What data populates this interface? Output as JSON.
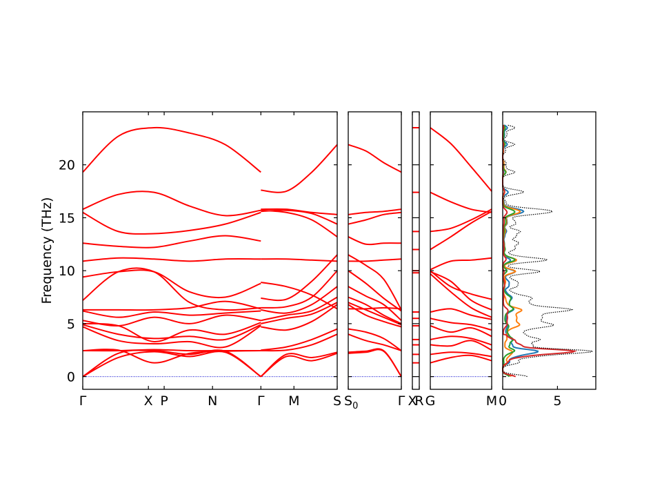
{
  "chart_data": {
    "type": "line",
    "ylabel": "Frequency (THz)",
    "ylim": [
      -1.2,
      25
    ],
    "yticks": [
      0,
      5,
      10,
      15,
      20
    ],
    "series_color": "#ff0000",
    "zero_line_color": "#0000cc",
    "band_panels": [
      {
        "ticks": [
          [
            "Γ",
            0
          ],
          [
            "X",
            0.258
          ],
          [
            "P",
            0.32
          ],
          [
            "N",
            0.51
          ],
          [
            "Γ",
            0.7
          ],
          [
            "M",
            0.83
          ],
          [
            "S",
            1.0
          ]
        ],
        "subtick": "",
        "segments": [
          {
            "x0": 0,
            "x1": 0.7,
            "bands": [
              [
                0,
                1.8,
                2.35,
                1.9,
                2.3,
                0
              ],
              [
                0,
                2.2,
                2.45,
                2.1,
                2.4,
                0
              ],
              [
                2.45,
                2.5,
                1.3,
                2.2,
                2.4,
                2.45
              ],
              [
                2.45,
                2.45,
                2.55,
                2.45,
                2.45,
                2.45
              ],
              [
                4.7,
                3.4,
                3.1,
                3.3,
                2.8,
                4.8
              ],
              [
                4.9,
                4.0,
                3.6,
                3.8,
                3.5,
                4.9
              ],
              [
                5.0,
                4.8,
                3.3,
                4.4,
                4.0,
                5.1
              ],
              [
                5.3,
                4.8,
                5.6,
                5.0,
                5.8,
                5.3
              ],
              [
                6.2,
                5.6,
                6.1,
                5.8,
                6.0,
                6.2
              ],
              [
                6.3,
                6.3,
                6.3,
                6.5,
                7.1,
                6.4
              ],
              [
                7.2,
                9.9,
                9.9,
                7.0,
                6.3,
                6.5
              ],
              [
                9.4,
                9.9,
                9.9,
                8.0,
                7.5,
                8.8
              ],
              [
                10.9,
                11.2,
                11.1,
                10.9,
                11.1,
                11.1
              ],
              [
                12.6,
                12.3,
                12.2,
                12.8,
                13.3,
                12.8
              ],
              [
                15.5,
                13.7,
                13.5,
                13.8,
                14.4,
                15.5
              ],
              [
                15.8,
                17.2,
                17.4,
                16.1,
                15.2,
                15.7
              ],
              [
                19.3,
                22.7,
                23.5,
                23.0,
                21.9,
                19.3
              ]
            ]
          },
          {
            "x0": 0.7,
            "x1": 1.0,
            "bands": [
              [
                0,
                1.9,
                1.5,
                2.2
              ],
              [
                0,
                2.1,
                1.8,
                2.3
              ],
              [
                2.45,
                2.5,
                3.0,
                4.0
              ],
              [
                2.5,
                2.8,
                3.5,
                4.5
              ],
              [
                4.7,
                4.4,
                5.2,
                6.8
              ],
              [
                5.0,
                5.5,
                5.9,
                7.0
              ],
              [
                5.3,
                5.8,
                6.2,
                7.5
              ],
              [
                6.3,
                6.0,
                6.8,
                8.5
              ],
              [
                6.5,
                6.6,
                7.5,
                10.0
              ],
              [
                7.4,
                7.3,
                9.0,
                11.5
              ],
              [
                8.9,
                8.5,
                7.7,
                6.4
              ],
              [
                11.1,
                11.1,
                11.0,
                10.9
              ],
              [
                15.7,
                15.5,
                14.8,
                13.2
              ],
              [
                15.6,
                15.7,
                15.4,
                14.4
              ],
              [
                15.8,
                15.8,
                15.5,
                15.3
              ],
              [
                17.6,
                17.5,
                19.3,
                21.9
              ]
            ]
          }
        ]
      },
      {
        "ticks": [
          [
            "S",
            0
          ],
          [
            "Γ",
            1.0
          ]
        ],
        "subtick": "0",
        "segments": [
          {
            "x0": 0,
            "x1": 1.0,
            "bands": [
              [
                2.2,
                2.3,
                2.4,
                0
              ],
              [
                2.3,
                2.4,
                2.45,
                0
              ],
              [
                4.0,
                3.4,
                3.0,
                2.45
              ],
              [
                4.5,
                4.2,
                3.6,
                2.45
              ],
              [
                6.8,
                5.8,
                5.2,
                4.7
              ],
              [
                7.0,
                6.3,
                5.6,
                4.9
              ],
              [
                7.5,
                6.8,
                5.8,
                5.0
              ],
              [
                8.5,
                7.6,
                6.8,
                5.3
              ],
              [
                10.0,
                8.8,
                7.4,
                6.2
              ],
              [
                11.5,
                10.5,
                9.2,
                6.3
              ],
              [
                6.4,
                6.4,
                6.5,
                6.4
              ],
              [
                10.9,
                10.9,
                11.0,
                11.1
              ],
              [
                13.2,
                12.5,
                12.6,
                12.6
              ],
              [
                14.4,
                14.8,
                15.3,
                15.5
              ],
              [
                15.3,
                15.5,
                15.6,
                15.8
              ],
              [
                21.9,
                21.3,
                20.2,
                19.3
              ]
            ]
          }
        ]
      },
      {
        "ticks": [
          [
            "X",
            0
          ],
          [
            "R",
            1.0
          ]
        ],
        "subtick": "",
        "segments": [
          {
            "x0": 0,
            "x1": 1.0,
            "bands": [
              [
                1.3,
                1.3
              ],
              [
                2.1,
                2.1
              ],
              [
                3.0,
                3.0
              ],
              [
                3.5,
                3.5
              ],
              [
                4.8,
                4.8
              ],
              [
                5.5,
                5.5
              ],
              [
                6.1,
                6.1
              ],
              [
                9.8,
                9.8
              ],
              [
                10.0,
                10.0
              ],
              [
                12.0,
                12.0
              ],
              [
                13.7,
                13.7
              ],
              [
                17.4,
                17.4
              ],
              [
                23.5,
                23.5
              ]
            ]
          }
        ]
      },
      {
        "ticks": [
          [
            "G",
            0
          ],
          [
            "M",
            1.0
          ]
        ],
        "subtick": "",
        "segments": [
          {
            "x0": 0,
            "x1": 1.0,
            "bands": [
              [
                1.3,
                1.8,
                2.0,
                1.5
              ],
              [
                2.1,
                2.3,
                2.2,
                1.9
              ],
              [
                3.0,
                2.9,
                3.4,
                2.5
              ],
              [
                3.5,
                3.8,
                3.6,
                3.0
              ],
              [
                4.8,
                4.2,
                4.6,
                3.8
              ],
              [
                5.5,
                5.1,
                4.9,
                4.4
              ],
              [
                6.1,
                6.4,
                5.8,
                5.4
              ],
              [
                9.7,
                8.0,
                6.5,
                5.6
              ],
              [
                9.9,
                9.0,
                7.2,
                6.3
              ],
              [
                10.0,
                8.5,
                7.8,
                7.3
              ],
              [
                10.1,
                10.9,
                11.0,
                11.2
              ],
              [
                12.0,
                13.2,
                14.5,
                15.6
              ],
              [
                13.7,
                14.0,
                14.8,
                15.8
              ],
              [
                17.4,
                16.5,
                15.8,
                15.5
              ],
              [
                23.5,
                22.0,
                19.8,
                17.5
              ]
            ]
          }
        ]
      }
    ],
    "dos_panel": {
      "xlim": [
        0,
        8.5
      ],
      "xticks": [
        0,
        5
      ],
      "total_color": "#000000",
      "partials": [
        {
          "color": "#1f77b4"
        },
        {
          "color": "#ff7f0e"
        },
        {
          "color": "#2ca02c"
        },
        {
          "color": "#d62728"
        }
      ]
    }
  }
}
